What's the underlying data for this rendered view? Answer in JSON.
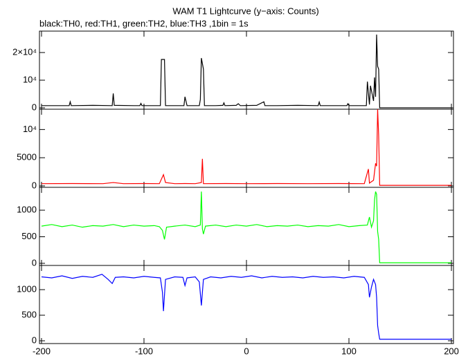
{
  "chart_data": [
    {
      "type": "line",
      "title": "WAM T1 Lightcurve (y−axis: Counts)",
      "subtitle": "black:TH0, red:TH1, green:TH2, blue:TH3 ,1bin = 1s",
      "color": "#000000",
      "x": [
        -200,
        -180,
        -173,
        -172,
        -171,
        -150,
        -131,
        -130,
        -129,
        -110,
        -104,
        -103,
        -102,
        -90,
        -84,
        -83,
        -80,
        -79,
        -70,
        -61,
        -60,
        -58,
        -50,
        -46,
        -45,
        -44,
        -42,
        -41,
        -30,
        -23,
        -22,
        -21,
        -10,
        -8,
        -6,
        10,
        17,
        18,
        30,
        50,
        70,
        71,
        72,
        90,
        98,
        99,
        100,
        110,
        117,
        118,
        120,
        121,
        124,
        125,
        126,
        127,
        128,
        129,
        130,
        150,
        175,
        200
      ],
      "values": [
        800,
        800,
        800,
        2200,
        800,
        900,
        800,
        5200,
        900,
        800,
        800,
        1600,
        800,
        800,
        800,
        17500,
        17500,
        800,
        800,
        800,
        4000,
        800,
        800,
        800,
        3000,
        18000,
        14000,
        800,
        800,
        900,
        1800,
        800,
        900,
        1500,
        800,
        900,
        2200,
        800,
        800,
        900,
        800,
        2100,
        800,
        800,
        800,
        1500,
        800,
        800,
        800,
        9500,
        1200,
        8000,
        2500,
        11000,
        4000,
        26500,
        15000,
        14000,
        0,
        0,
        0,
        0
      ],
      "xlim": [
        -202,
        202
      ],
      "xticks": [
        -200,
        -100,
        0,
        100,
        200
      ],
      "ylim": [
        -500,
        27750
      ],
      "yticks": [
        0,
        {
          "value": 10000,
          "label": "10⁴"
        },
        {
          "value": 20000,
          "label": "2×10⁴"
        }
      ]
    },
    {
      "type": "line",
      "color": "#ff0000",
      "x": [
        -200,
        -170,
        -140,
        -130,
        -120,
        -100,
        -85,
        -81,
        -79,
        -70,
        -60,
        -50,
        -44,
        -43,
        -42,
        -20,
        0,
        30,
        60,
        90,
        115,
        119,
        120,
        124,
        126,
        127,
        128,
        129,
        130,
        150,
        175,
        200
      ],
      "values": [
        400,
        420,
        400,
        600,
        400,
        420,
        400,
        2000,
        600,
        400,
        420,
        400,
        600,
        4800,
        400,
        420,
        400,
        420,
        400,
        420,
        400,
        3000,
        500,
        1000,
        4000,
        3500,
        13600,
        9000,
        100,
        100,
        100,
        100
      ],
      "xlim": [
        -202,
        202
      ],
      "xticks": [
        -200,
        -100,
        0,
        100,
        200
      ],
      "ylim": [
        -250,
        13600
      ],
      "yticks": [
        0,
        5000,
        {
          "value": 10000,
          "label": "10⁴"
        }
      ]
    },
    {
      "type": "line",
      "color": "#00ff00",
      "x": [
        -200,
        -190,
        -180,
        -170,
        -160,
        -150,
        -140,
        -130,
        -120,
        -110,
        -100,
        -90,
        -85,
        -82,
        -80,
        -78,
        -70,
        -60,
        -50,
        -45,
        -44,
        -43,
        -42,
        -40,
        -30,
        -20,
        -10,
        0,
        10,
        20,
        30,
        40,
        50,
        60,
        70,
        80,
        90,
        100,
        110,
        118,
        120,
        122,
        124,
        125,
        126,
        127,
        128,
        129,
        130,
        150,
        175,
        200
      ],
      "values": [
        700,
        730,
        690,
        720,
        680,
        710,
        700,
        730,
        690,
        720,
        700,
        710,
        690,
        620,
        450,
        680,
        700,
        720,
        690,
        720,
        1350,
        650,
        550,
        700,
        720,
        690,
        720,
        700,
        730,
        690,
        710,
        700,
        720,
        690,
        710,
        700,
        730,
        690,
        710,
        720,
        870,
        680,
        800,
        1200,
        1350,
        1300,
        600,
        450,
        10,
        10,
        10,
        10
      ],
      "xlim": [
        -202,
        202
      ],
      "xticks": [
        -200,
        -100,
        0,
        100,
        200
      ],
      "ylim": [
        -40,
        1430
      ],
      "yticks": [
        0,
        500,
        1000
      ]
    },
    {
      "type": "line",
      "color": "#0000ff",
      "x": [
        -200,
        -190,
        -180,
        -170,
        -160,
        -150,
        -141,
        -135,
        -131,
        -128,
        -120,
        -110,
        -100,
        -90,
        -84,
        -82,
        -81,
        -79,
        -70,
        -62,
        -60,
        -58,
        -50,
        -46,
        -44,
        -42,
        -35,
        -25,
        -15,
        -5,
        5,
        15,
        25,
        35,
        45,
        55,
        65,
        75,
        85,
        95,
        105,
        115,
        119,
        120,
        122,
        124,
        126,
        127,
        128,
        129,
        130,
        150,
        175,
        200
      ],
      "values": [
        1250,
        1230,
        1270,
        1220,
        1260,
        1240,
        1300,
        1200,
        1120,
        1240,
        1250,
        1230,
        1260,
        1240,
        1230,
        950,
        580,
        1200,
        1250,
        1240,
        1080,
        1230,
        1250,
        1150,
        690,
        1200,
        1250,
        1230,
        1260,
        1240,
        1270,
        1230,
        1260,
        1240,
        1250,
        1230,
        1260,
        1240,
        1250,
        1230,
        1260,
        1240,
        1100,
        850,
        1050,
        1200,
        1100,
        850,
        300,
        150,
        30,
        30,
        30,
        30
      ],
      "xlim": [
        -202,
        202
      ],
      "xticks": [
        -200,
        -100,
        0,
        100,
        200
      ],
      "ylim": [
        -54,
        1473
      ],
      "yticks": [
        0,
        500,
        1000
      ]
    }
  ]
}
